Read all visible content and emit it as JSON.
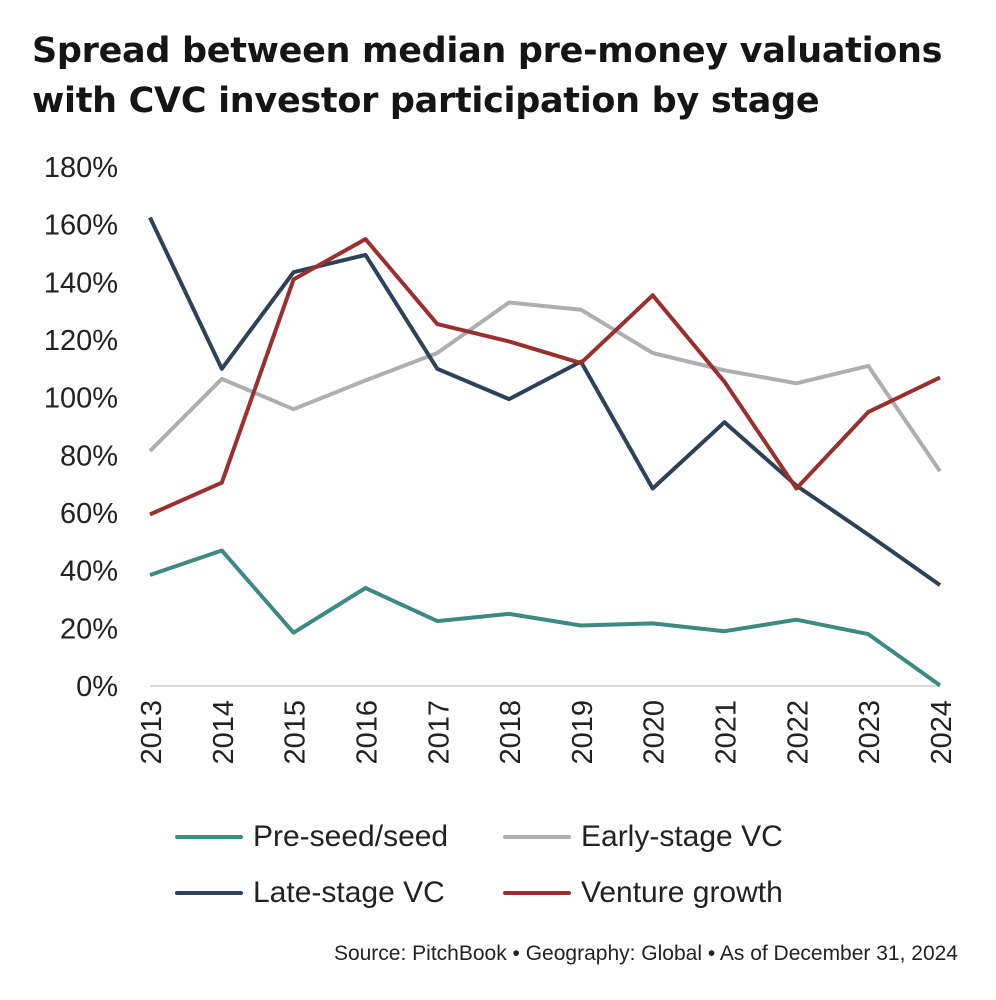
{
  "title_lines": [
    "Spread between median pre-money valuations",
    "with CVC investor participation by stage"
  ],
  "source": "Source: PitchBook • Geography: Global • As of December 31, 2024",
  "chart_data": {
    "type": "line",
    "title": "Spread between median pre-money valuations with CVC investor participation by stage",
    "xlabel": "",
    "ylabel": "",
    "x": [
      "2013",
      "2014",
      "2015",
      "2016",
      "2017",
      "2018",
      "2019",
      "2020",
      "2021",
      "2022",
      "2023",
      "2024"
    ],
    "ylim": [
      0,
      180
    ],
    "yticks": [
      0,
      20,
      40,
      60,
      80,
      100,
      120,
      140,
      160,
      180
    ],
    "ytick_labels": [
      "0%",
      "20%",
      "40%",
      "60%",
      "80%",
      "100%",
      "120%",
      "140%",
      "160%",
      "180%"
    ],
    "grid": false,
    "legend_position": "bottom",
    "series": [
      {
        "name": "Pre-seed/seed",
        "color": "#3d8a80",
        "values": [
          38.5,
          47.0,
          18.5,
          34.0,
          22.5,
          25.0,
          21.0,
          21.7,
          19.0,
          23.0,
          18.0,
          0.2
        ]
      },
      {
        "name": "Early-stage VC",
        "color": "#aeaeae",
        "values": [
          81.5,
          106.5,
          96.0,
          106.0,
          115.5,
          133.0,
          130.5,
          115.5,
          109.5,
          105.0,
          111.0,
          74.5
        ]
      },
      {
        "name": "Late-stage VC",
        "color": "#2f4157",
        "values": [
          162.5,
          110.0,
          143.5,
          149.5,
          110.0,
          99.5,
          112.5,
          68.5,
          91.5,
          69.5,
          52.5,
          35.0
        ]
      },
      {
        "name": "Venture growth",
        "color": "#9a2f2f",
        "values": [
          59.5,
          70.5,
          141.0,
          155.0,
          125.5,
          119.5,
          112.0,
          135.5,
          105.5,
          68.5,
          95.0,
          107.0
        ]
      }
    ]
  }
}
